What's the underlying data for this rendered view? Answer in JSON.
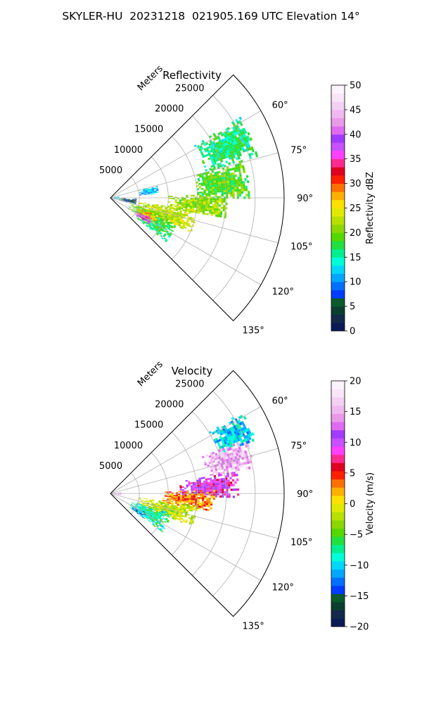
{
  "figure": {
    "title": "SKYLER-HU  20231218  021905.169 UTC Elevation 14°"
  },
  "chart_data": [
    {
      "type": "heatmap",
      "subtype": "polar-sector radar scan (PPI)",
      "title": "Reflectivity",
      "r_axis_label": "Meters",
      "r_ticks": [
        5000,
        10000,
        15000,
        20000,
        25000
      ],
      "r_tick_labels": [
        "5000",
        "10000",
        "15000",
        "20000",
        "25000"
      ],
      "rlim": [
        0,
        30000
      ],
      "theta_ticks": [
        60,
        75,
        90,
        105,
        120,
        135
      ],
      "theta_tick_labels": [
        "60°",
        "75°",
        "90°",
        "105°",
        "120°",
        "135°"
      ],
      "theta_range_deg": [
        45,
        135
      ],
      "grid": true,
      "colorbar": {
        "label": "Reflectivity dBZ",
        "range": [
          0,
          50
        ],
        "ticks": [
          0,
          5,
          10,
          15,
          20,
          25,
          30,
          35,
          40,
          45,
          50
        ],
        "tick_labels": [
          "0",
          "5",
          "10",
          "15",
          "20",
          "25",
          "30",
          "35",
          "40",
          "45",
          "50"
        ],
        "colors": [
          "#0b1a55",
          "#12294a",
          "#0a3f2f",
          "#0a5a2d",
          "#003cff",
          "#0070ff",
          "#00a8ff",
          "#00d8ff",
          "#00ffd8",
          "#00f090",
          "#22e040",
          "#55d800",
          "#8cd800",
          "#b8e000",
          "#e0ea00",
          "#ffe000",
          "#ffb000",
          "#ff7000",
          "#ff2000",
          "#e00020",
          "#ff2a90",
          "#ff40ff",
          "#c850ff",
          "#a33bff",
          "#e06bf0",
          "#e89ae8",
          "#f0b8f0",
          "#f4d0f4",
          "#f8e6f8",
          "#fcf4fc"
        ]
      },
      "echo_regions": [
        {
          "theta": [
            58,
            74
          ],
          "r": [
            17000,
            26500
          ],
          "value": 16
        },
        {
          "theta": [
            74,
            90
          ],
          "r": [
            15000,
            24000
          ],
          "value": 19
        },
        {
          "theta": [
            88,
            100
          ],
          "r": [
            10000,
            20000
          ],
          "value": 21
        },
        {
          "theta": [
            98,
            113
          ],
          "r": [
            5000,
            15000
          ],
          "value": 23
        },
        {
          "theta": [
            106,
            122
          ],
          "r": [
            3500,
            11000
          ],
          "value": 20
        },
        {
          "theta": [
            112,
            128
          ],
          "r": [
            5500,
            12000
          ],
          "value": 17
        },
        {
          "theta": [
            110,
            120
          ],
          "r": [
            5000,
            9000
          ],
          "value": 27
        },
        {
          "theta": [
            116,
            124
          ],
          "r": [
            5000,
            8000
          ],
          "value": 36
        },
        {
          "theta": [
            92,
            104
          ],
          "r": [
            1500,
            4500
          ],
          "value": 5
        },
        {
          "theta": [
            75,
            85
          ],
          "r": [
            5000,
            8500
          ],
          "value": 12
        },
        {
          "theta": [
            80,
            100
          ],
          "r": [
            0,
            1500
          ],
          "value": 12
        }
      ]
    },
    {
      "type": "heatmap",
      "subtype": "polar-sector radar scan (PPI)",
      "title": "Velocity",
      "r_axis_label": "Meters",
      "r_ticks": [
        5000,
        10000,
        15000,
        20000,
        25000
      ],
      "r_tick_labels": [
        "5000",
        "10000",
        "15000",
        "20000",
        "25000"
      ],
      "rlim": [
        0,
        30000
      ],
      "theta_ticks": [
        60,
        75,
        90,
        105,
        120,
        135
      ],
      "theta_tick_labels": [
        "60°",
        "75°",
        "90°",
        "105°",
        "120°",
        "135°"
      ],
      "theta_range_deg": [
        45,
        135
      ],
      "grid": true,
      "colorbar": {
        "label": "Velocity (m/s)",
        "range": [
          -20,
          20
        ],
        "ticks": [
          -20,
          -15,
          -10,
          -5,
          0,
          5,
          10,
          15,
          20
        ],
        "tick_labels": [
          "−20",
          "−15",
          "−10",
          "−5",
          "0",
          "5",
          "10",
          "15",
          "20"
        ],
        "colors": [
          "#0b1a55",
          "#12294a",
          "#0a3f2f",
          "#0a5a2d",
          "#003cff",
          "#0070ff",
          "#00a8ff",
          "#00d8ff",
          "#00ffd8",
          "#00f090",
          "#22e040",
          "#55d800",
          "#8cd800",
          "#b8e000",
          "#e0ea00",
          "#ffe000",
          "#ffb000",
          "#ff7000",
          "#ff2000",
          "#e00020",
          "#ff2a90",
          "#ff40ff",
          "#c850ff",
          "#a33bff",
          "#e06bf0",
          "#e89ae8",
          "#f0b8f0",
          "#f4d0f4",
          "#f8e6f8",
          "#fcf4fc"
        ]
      },
      "echo_regions": [
        {
          "theta": [
            58,
            70
          ],
          "r": [
            20000,
            26500
          ],
          "value": -10
        },
        {
          "theta": [
            68,
            80
          ],
          "r": [
            17000,
            25000
          ],
          "value": 15
        },
        {
          "theta": [
            80,
            92
          ],
          "r": [
            12000,
            22000
          ],
          "value": 9
        },
        {
          "theta": [
            88,
            100
          ],
          "r": [
            9000,
            18000
          ],
          "value": 3
        },
        {
          "theta": [
            98,
            112
          ],
          "r": [
            5000,
            15000
          ],
          "value": -2
        },
        {
          "theta": [
            108,
            126
          ],
          "r": [
            4000,
            11000
          ],
          "value": -8
        },
        {
          "theta": [
            118,
            126
          ],
          "r": [
            4500,
            7000
          ],
          "value": -12
        },
        {
          "theta": [
            84,
            98
          ],
          "r": [
            0,
            1800
          ],
          "value": 14
        }
      ]
    }
  ]
}
